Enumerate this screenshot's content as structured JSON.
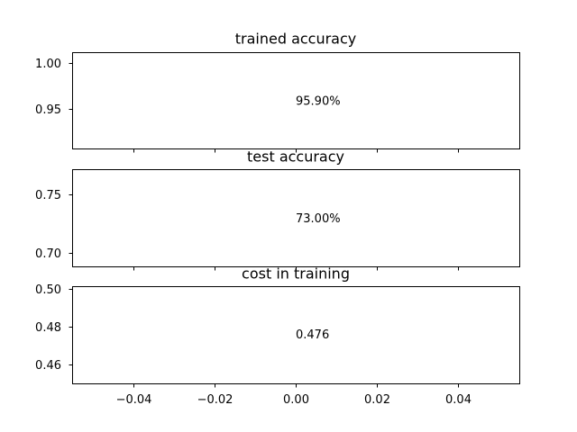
{
  "chart_data": [
    {
      "type": "scatter",
      "title": "trained accuracy",
      "xlabel": "",
      "ylabel": "",
      "xlim": [
        -0.055,
        0.055
      ],
      "ylim": [
        0.9055,
        1.0125
      ],
      "yticks": [
        0.95,
        1.0
      ],
      "ytick_labels": [
        "0.95",
        "1.00"
      ],
      "x": [
        0.0
      ],
      "y": [
        0.959
      ],
      "annotation": "95.90%",
      "show_xtick_labels": false
    },
    {
      "type": "scatter",
      "title": "test accuracy",
      "xlabel": "",
      "ylabel": "",
      "xlim": [
        -0.055,
        0.055
      ],
      "ylim": [
        0.6885,
        0.7715
      ],
      "yticks": [
        0.7,
        0.75
      ],
      "ytick_labels": [
        "0.70",
        "0.75"
      ],
      "x": [
        0.0
      ],
      "y": [
        0.73
      ],
      "annotation": "73.00%",
      "show_xtick_labels": false
    },
    {
      "type": "scatter",
      "title": "cost in training",
      "xlabel": "",
      "ylabel": "",
      "xlim": [
        -0.055,
        0.055
      ],
      "ylim": [
        0.4498,
        0.5012
      ],
      "yticks": [
        0.46,
        0.48,
        0.5
      ],
      "ytick_labels": [
        "0.46",
        "0.48",
        "0.50"
      ],
      "x": [
        0.0
      ],
      "y": [
        0.476
      ],
      "annotation": "0.476",
      "show_xtick_labels": true
    }
  ],
  "shared_xticks": [
    -0.04,
    -0.02,
    0.0,
    0.02,
    0.04
  ],
  "shared_xtick_labels": [
    "−0.04",
    "−0.02",
    "0.00",
    "0.02",
    "0.04"
  ]
}
